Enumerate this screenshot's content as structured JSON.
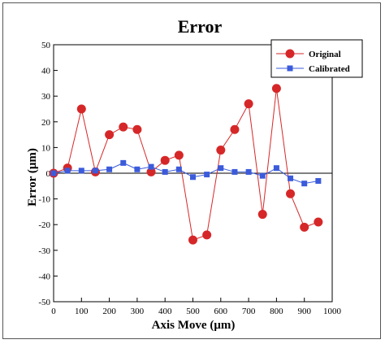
{
  "chart_data": {
    "type": "line",
    "title": "Error",
    "xlabel": "Axis Move (μm)",
    "ylabel": "Error (μm)",
    "xlim": [
      0,
      1000
    ],
    "ylim": [
      -50,
      50
    ],
    "xticks": [
      0,
      100,
      200,
      300,
      400,
      500,
      600,
      700,
      800,
      900,
      1000
    ],
    "yticks": [
      -50,
      -40,
      -30,
      -20,
      -10,
      0,
      10,
      20,
      30,
      40,
      50
    ],
    "grid": false,
    "legend_position": "top-right",
    "series": [
      {
        "name": "Original",
        "color": "#d62728",
        "marker": "circle",
        "x": [
          0,
          50,
          100,
          150,
          200,
          250,
          300,
          350,
          400,
          450,
          500,
          550,
          600,
          650,
          700,
          750,
          800,
          850,
          900,
          950
        ],
        "y": [
          0,
          2,
          25,
          0.5,
          15,
          18,
          17,
          0.5,
          5,
          7,
          -26,
          -24,
          9,
          17,
          27,
          -16,
          33,
          -8,
          -21,
          -19
        ]
      },
      {
        "name": "Calibrated",
        "color": "#3b5bdb",
        "marker": "square",
        "x": [
          0,
          50,
          100,
          150,
          200,
          250,
          300,
          350,
          400,
          450,
          500,
          550,
          600,
          650,
          700,
          750,
          800,
          850,
          900,
          950
        ],
        "y": [
          0,
          1,
          1,
          1,
          1.5,
          4,
          1.5,
          2.5,
          0.5,
          1.5,
          -1.5,
          -0.5,
          2,
          0.5,
          0.5,
          -1,
          2,
          -2,
          -4,
          -3
        ]
      }
    ]
  }
}
